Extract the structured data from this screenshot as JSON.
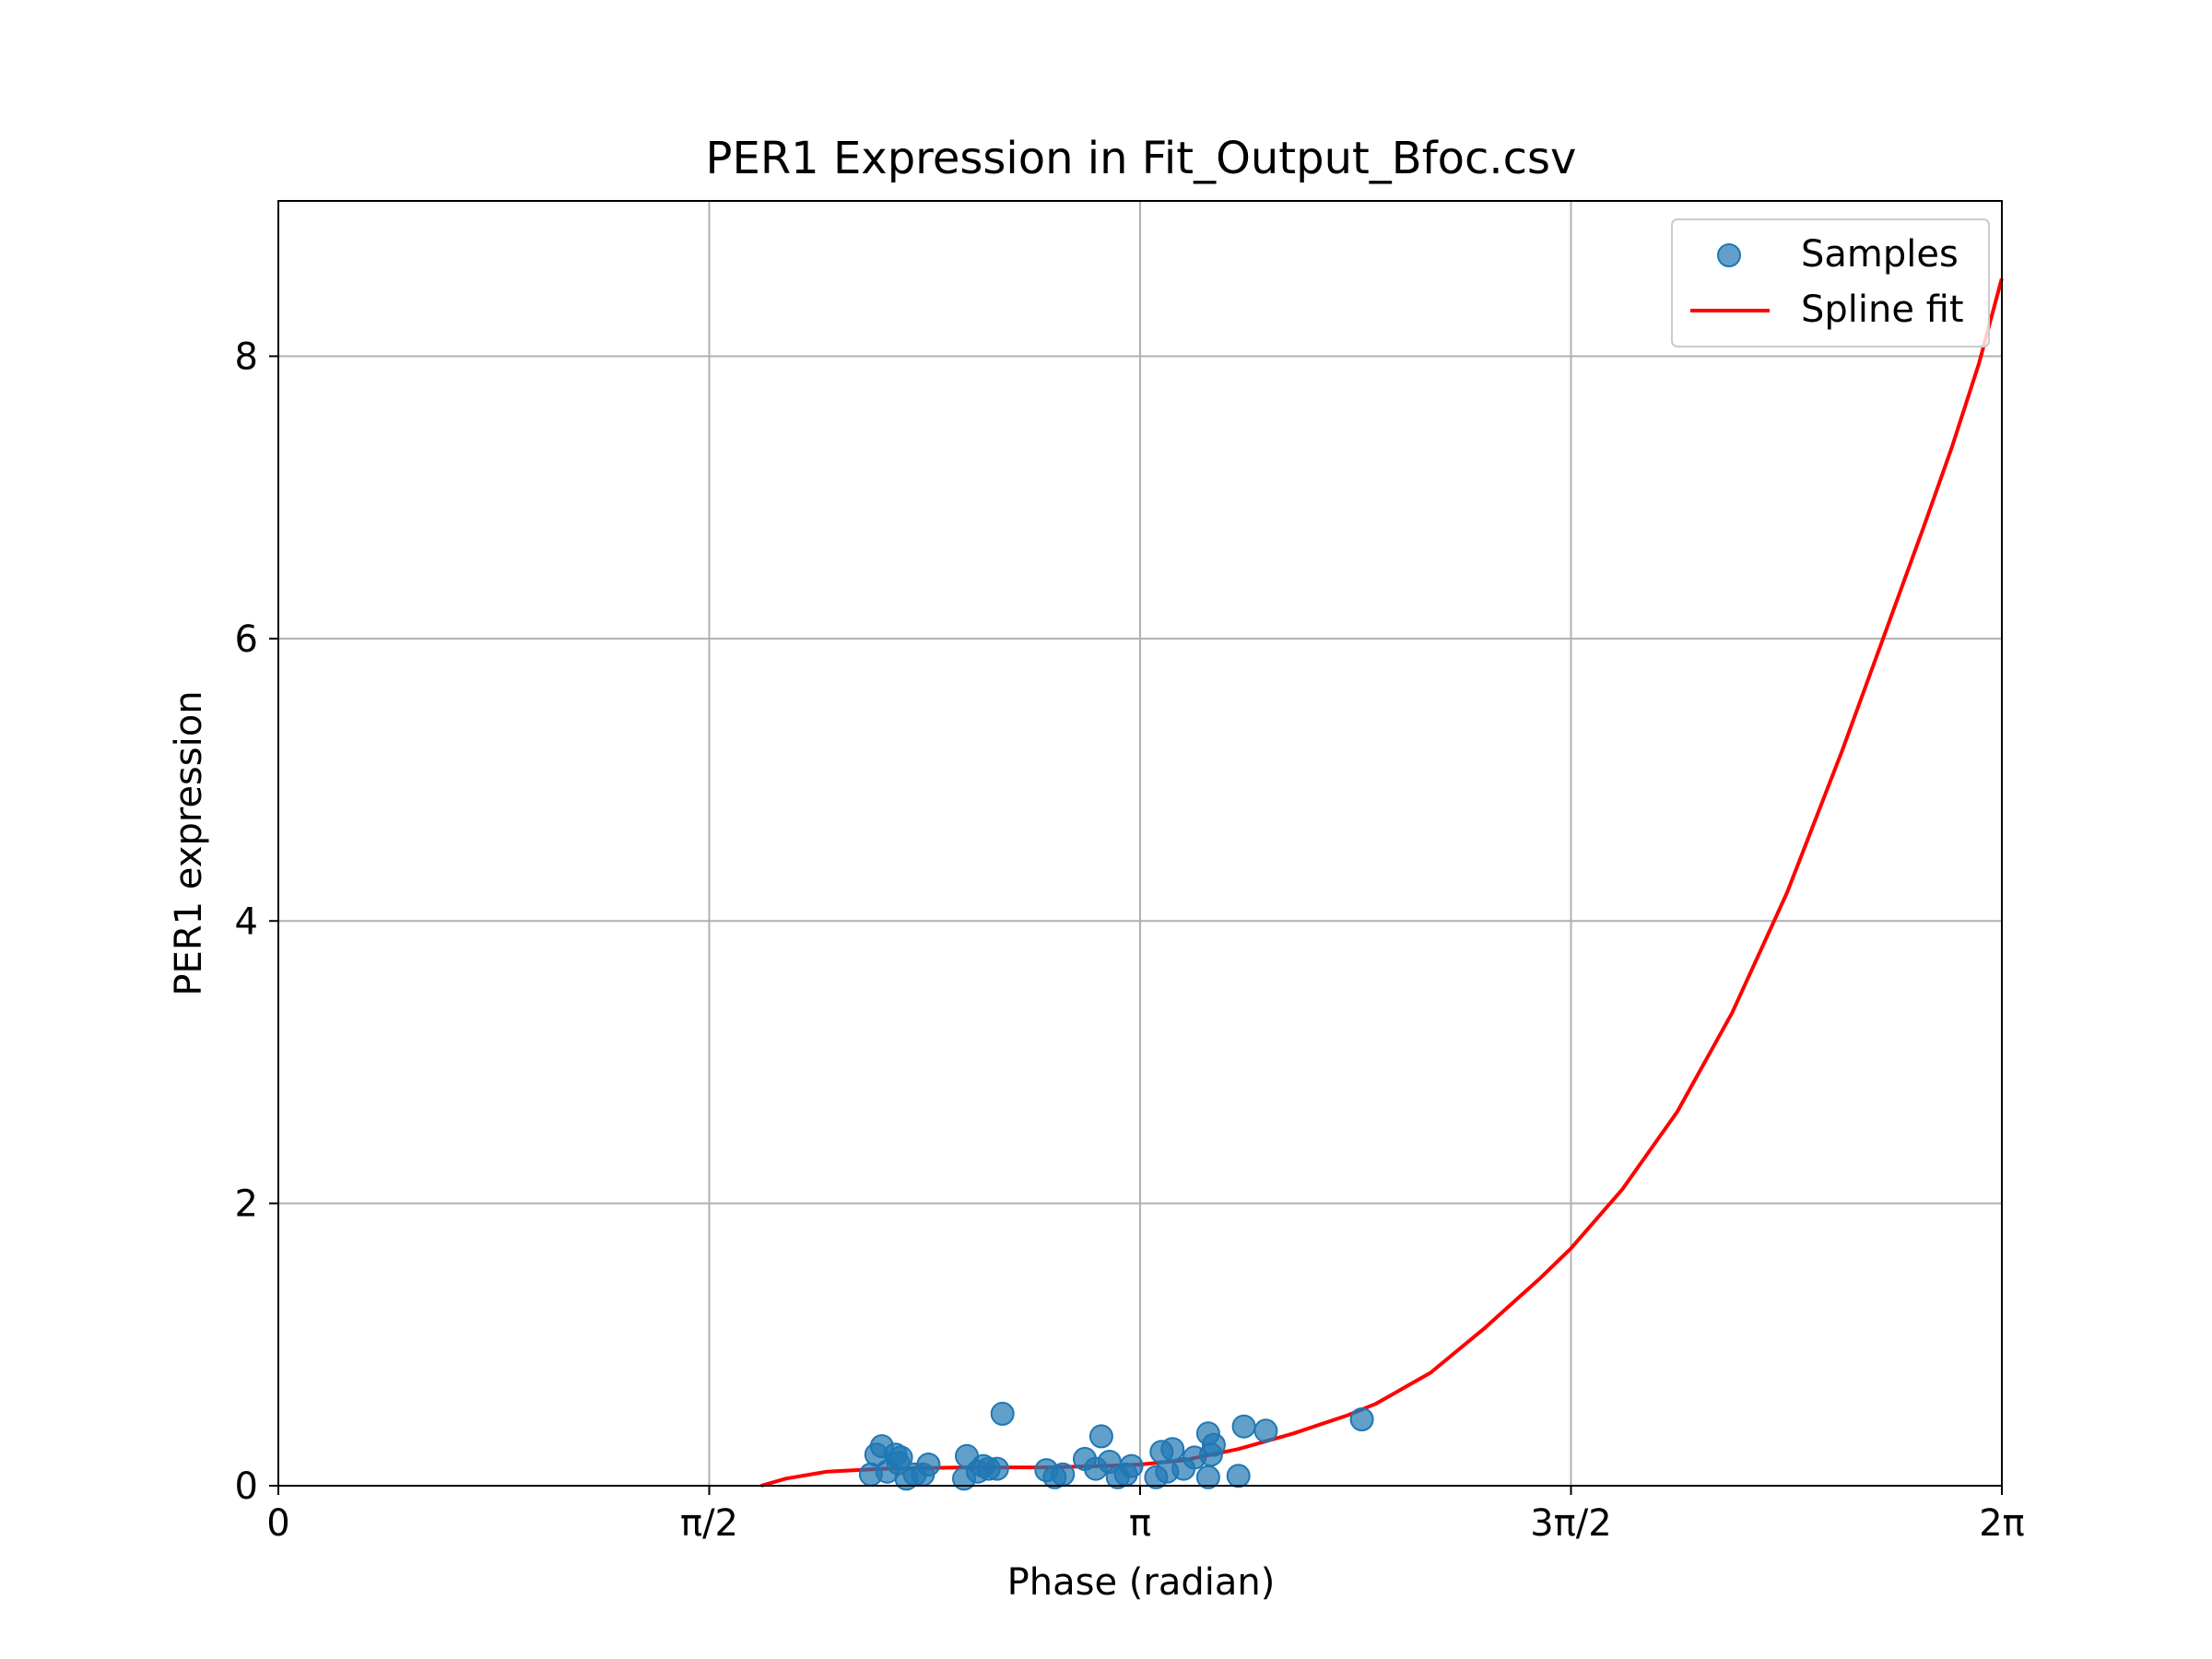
{
  "colors": {
    "samples": "#1f77b4",
    "fit": "#ff0000",
    "grid": "#b0b0b0",
    "axes": "#000000"
  },
  "chart_data": {
    "type": "scatter",
    "title": "PER1 Expression in Fit_Output_Bfoc.csv",
    "xlabel": "Phase (radian)",
    "ylabel": "PER1 expression",
    "xlim": [
      0,
      6.283185
    ],
    "ylim": [
      0,
      9.1
    ],
    "grid": true,
    "legend_position": "top-right",
    "x_ticks": [
      {
        "value": 0,
        "label": "0"
      },
      {
        "value": 1.570796,
        "label": "π/2"
      },
      {
        "value": 3.141593,
        "label": "π"
      },
      {
        "value": 4.712389,
        "label": "3π/2"
      },
      {
        "value": 6.283185,
        "label": "2π"
      }
    ],
    "y_ticks": [
      {
        "value": 0,
        "label": "0"
      },
      {
        "value": 2,
        "label": "2"
      },
      {
        "value": 4,
        "label": "4"
      },
      {
        "value": 6,
        "label": "6"
      },
      {
        "value": 8,
        "label": "8"
      }
    ],
    "series": [
      {
        "name": "Samples",
        "kind": "scatter",
        "points": [
          {
            "x": 2.16,
            "y": 0.08
          },
          {
            "x": 2.18,
            "y": 0.22
          },
          {
            "x": 2.2,
            "y": 0.28
          },
          {
            "x": 2.22,
            "y": 0.1
          },
          {
            "x": 2.25,
            "y": 0.22
          },
          {
            "x": 2.26,
            "y": 0.16
          },
          {
            "x": 2.27,
            "y": 0.2
          },
          {
            "x": 2.29,
            "y": 0.05
          },
          {
            "x": 2.32,
            "y": 0.08
          },
          {
            "x": 2.35,
            "y": 0.08
          },
          {
            "x": 2.37,
            "y": 0.15
          },
          {
            "x": 2.5,
            "y": 0.05
          },
          {
            "x": 2.51,
            "y": 0.21
          },
          {
            "x": 2.55,
            "y": 0.1
          },
          {
            "x": 2.57,
            "y": 0.14
          },
          {
            "x": 2.59,
            "y": 0.12
          },
          {
            "x": 2.62,
            "y": 0.12
          },
          {
            "x": 2.64,
            "y": 0.51
          },
          {
            "x": 2.8,
            "y": 0.11
          },
          {
            "x": 2.83,
            "y": 0.06
          },
          {
            "x": 2.86,
            "y": 0.08
          },
          {
            "x": 2.94,
            "y": 0.19
          },
          {
            "x": 2.98,
            "y": 0.12
          },
          {
            "x": 3.0,
            "y": 0.35
          },
          {
            "x": 3.03,
            "y": 0.17
          },
          {
            "x": 3.06,
            "y": 0.06
          },
          {
            "x": 3.09,
            "y": 0.08
          },
          {
            "x": 3.11,
            "y": 0.14
          },
          {
            "x": 3.2,
            "y": 0.06
          },
          {
            "x": 3.22,
            "y": 0.24
          },
          {
            "x": 3.24,
            "y": 0.1
          },
          {
            "x": 3.26,
            "y": 0.26
          },
          {
            "x": 3.3,
            "y": 0.12
          },
          {
            "x": 3.34,
            "y": 0.2
          },
          {
            "x": 3.39,
            "y": 0.06
          },
          {
            "x": 3.39,
            "y": 0.37
          },
          {
            "x": 3.4,
            "y": 0.22
          },
          {
            "x": 3.41,
            "y": 0.29
          },
          {
            "x": 3.5,
            "y": 0.07
          },
          {
            "x": 3.52,
            "y": 0.42
          },
          {
            "x": 3.6,
            "y": 0.39
          },
          {
            "x": 3.95,
            "y": 0.47
          }
        ]
      },
      {
        "name": "Spline fit",
        "kind": "line",
        "points": [
          {
            "x": 1.76,
            "y": 0.0
          },
          {
            "x": 1.85,
            "y": 0.05
          },
          {
            "x": 2.0,
            "y": 0.1
          },
          {
            "x": 2.2,
            "y": 0.12
          },
          {
            "x": 2.5,
            "y": 0.13
          },
          {
            "x": 2.8,
            "y": 0.13
          },
          {
            "x": 3.0,
            "y": 0.14
          },
          {
            "x": 3.14,
            "y": 0.15
          },
          {
            "x": 3.3,
            "y": 0.18
          },
          {
            "x": 3.5,
            "y": 0.26
          },
          {
            "x": 3.7,
            "y": 0.37
          },
          {
            "x": 3.9,
            "y": 0.5
          },
          {
            "x": 4.0,
            "y": 0.58
          },
          {
            "x": 4.2,
            "y": 0.8
          },
          {
            "x": 4.4,
            "y": 1.12
          },
          {
            "x": 4.6,
            "y": 1.47
          },
          {
            "x": 4.712,
            "y": 1.68
          },
          {
            "x": 4.9,
            "y": 2.1
          },
          {
            "x": 5.1,
            "y": 2.65
          },
          {
            "x": 5.3,
            "y": 3.35
          },
          {
            "x": 5.5,
            "y": 4.2
          },
          {
            "x": 5.7,
            "y": 5.2
          },
          {
            "x": 5.85,
            "y": 6.0
          },
          {
            "x": 6.0,
            "y": 6.8
          },
          {
            "x": 6.1,
            "y": 7.35
          },
          {
            "x": 6.2,
            "y": 7.95
          },
          {
            "x": 6.283,
            "y": 8.55
          }
        ]
      }
    ]
  }
}
